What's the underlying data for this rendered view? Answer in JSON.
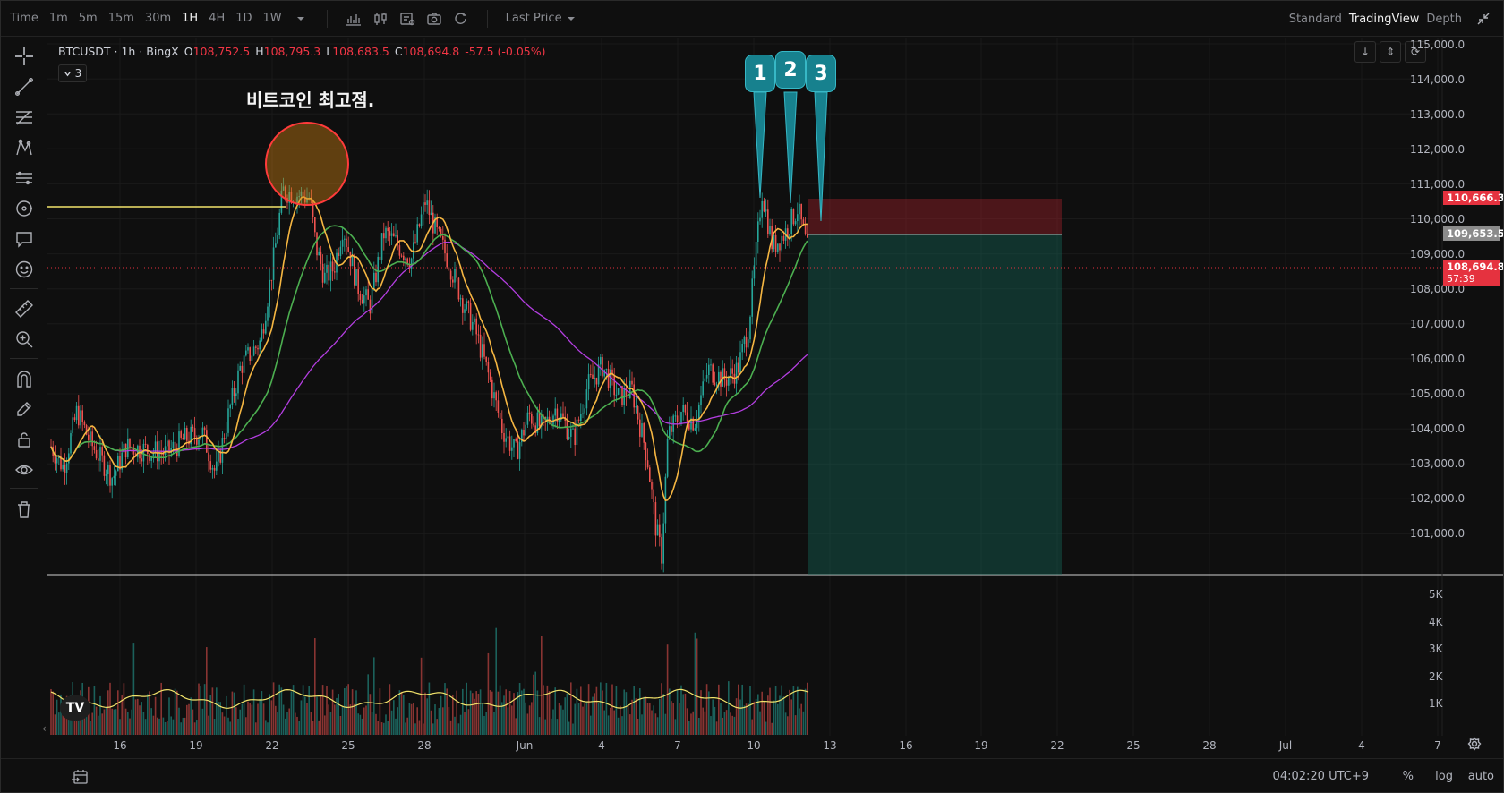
{
  "toolbar": {
    "time_label": "Time",
    "intervals": [
      "1m",
      "5m",
      "15m",
      "30m",
      "1H",
      "4H",
      "1D",
      "1W"
    ],
    "active_interval": "1H",
    "price_source": "Last Price",
    "views": [
      "Standard",
      "TradingView",
      "Depth"
    ],
    "active_view": "TradingView",
    "icons": [
      "indicators-icon",
      "chart-type-icon",
      "template-icon",
      "screenshot-icon",
      "reset-icon"
    ]
  },
  "legend": {
    "symbol": "BTCUSDT · 1h · BingX",
    "open_label": "O",
    "open": "108,752.5",
    "high_label": "H",
    "high": "108,795.3",
    "low_label": "L",
    "low": "108,683.5",
    "close_label": "C",
    "close": "108,694.8",
    "change": "-57.5 (-0.05%)",
    "indicator_count": "3"
  },
  "annotations": {
    "ath_text": "비트코인 최고점.",
    "pins": [
      "1",
      "2",
      "3"
    ]
  },
  "price_axis": {
    "ticks": [
      "115,000.0",
      "114,000.0",
      "113,000.0",
      "112,000.0",
      "111,000.0",
      "110,000.0",
      "109,000.0",
      "108,000.0",
      "107,000.0",
      "106,000.0",
      "105,000.0",
      "104,000.0",
      "103,000.0",
      "102,000.0",
      "101,000.0"
    ],
    "stop_tag": "110,666.3",
    "entry_tag": "109,653.5",
    "last_tag": "108,694.8",
    "countdown": "57:39"
  },
  "volume_axis": {
    "ticks": [
      "5K",
      "4K",
      "3K",
      "2K",
      "1K"
    ]
  },
  "time_axis": {
    "ticks": [
      "16",
      "19",
      "22",
      "25",
      "28",
      "Jun",
      "4",
      "7",
      "10",
      "13",
      "16",
      "19",
      "22",
      "25",
      "28",
      "Jul",
      "4",
      "7"
    ]
  },
  "bottom": {
    "clock": "04:02:20 UTC+9",
    "percent": "%",
    "log": "log",
    "auto": "auto"
  },
  "colors": {
    "up": "#26a69a",
    "down": "#ef5350",
    "ma_fast": "#f5b642",
    "ma_mid": "#4caf50",
    "ma_slow": "#b33ee0",
    "ath_line": "#f2e36b"
  }
}
